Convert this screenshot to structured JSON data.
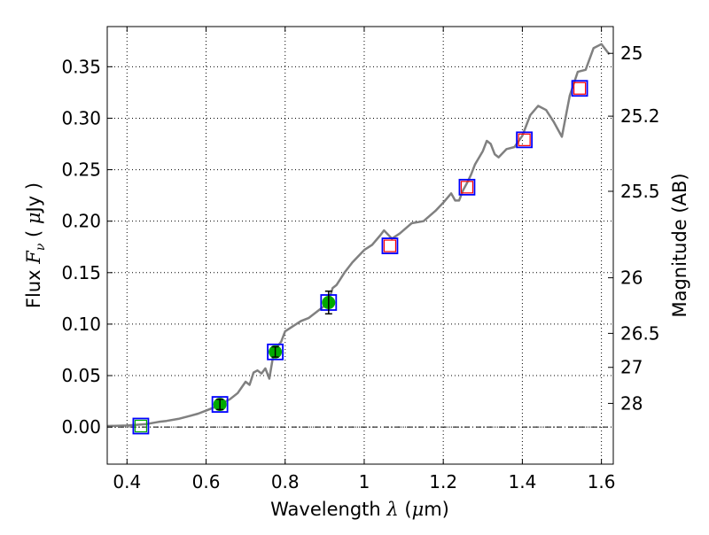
{
  "chart_data": {
    "type": "line+scatter",
    "xlabel": "Wavelength  λ (μm)",
    "ylabel": "Flux  Fν ( μJy )",
    "ylabel_right": "Magnitude (AB)",
    "xlim": [
      0.35,
      1.63
    ],
    "ylim": [
      -0.036,
      0.389
    ],
    "grid": true,
    "x_ticks": [
      0.4,
      0.6,
      0.8,
      1.0,
      1.2,
      1.4,
      1.6
    ],
    "x_tick_labels": [
      "0.4",
      "0.6",
      "0.8",
      "1",
      "1.2",
      "1.4",
      "1.6"
    ],
    "y_ticks": [
      0.0,
      0.05,
      0.1,
      0.15,
      0.2,
      0.25,
      0.3,
      0.35
    ],
    "y_tick_labels": [
      "0.00",
      "0.05",
      "0.10",
      "0.15",
      "0.20",
      "0.25",
      "0.30",
      "0.35"
    ],
    "right_ticks": [
      {
        "label": "25",
        "flux": 0.363
      },
      {
        "label": "25.2",
        "flux": 0.302
      },
      {
        "label": "25.5",
        "flux": 0.229
      },
      {
        "label": "26",
        "flux": 0.145
      },
      {
        "label": "26.5",
        "flux": 0.091
      },
      {
        "label": "27",
        "flux": 0.058
      },
      {
        "label": "28",
        "flux": 0.023
      }
    ],
    "spectrum": {
      "color": "#808080",
      "x": [
        0.35,
        0.4,
        0.42,
        0.45,
        0.48,
        0.5,
        0.53,
        0.56,
        0.58,
        0.6,
        0.62,
        0.64,
        0.66,
        0.68,
        0.7,
        0.71,
        0.72,
        0.73,
        0.74,
        0.75,
        0.76,
        0.77,
        0.78,
        0.79,
        0.8,
        0.82,
        0.84,
        0.86,
        0.88,
        0.9,
        0.91,
        0.92,
        0.93,
        0.95,
        0.97,
        1.0,
        1.02,
        1.04,
        1.05,
        1.07,
        1.09,
        1.12,
        1.15,
        1.18,
        1.2,
        1.22,
        1.23,
        1.24,
        1.25,
        1.26,
        1.27,
        1.28,
        1.3,
        1.31,
        1.32,
        1.33,
        1.34,
        1.36,
        1.38,
        1.4,
        1.42,
        1.44,
        1.46,
        1.48,
        1.5,
        1.52,
        1.54,
        1.56,
        1.58,
        1.6,
        1.62
      ],
      "y": [
        0.001,
        0.0015,
        0.002,
        0.003,
        0.005,
        0.006,
        0.008,
        0.011,
        0.013,
        0.016,
        0.019,
        0.023,
        0.027,
        0.033,
        0.044,
        0.041,
        0.053,
        0.055,
        0.052,
        0.057,
        0.047,
        0.07,
        0.078,
        0.083,
        0.093,
        0.098,
        0.103,
        0.106,
        0.112,
        0.118,
        0.122,
        0.135,
        0.138,
        0.15,
        0.16,
        0.172,
        0.177,
        0.186,
        0.191,
        0.183,
        0.188,
        0.198,
        0.2,
        0.21,
        0.218,
        0.227,
        0.22,
        0.22,
        0.23,
        0.237,
        0.245,
        0.255,
        0.268,
        0.278,
        0.275,
        0.265,
        0.262,
        0.27,
        0.272,
        0.283,
        0.303,
        0.312,
        0.308,
        0.296,
        0.282,
        0.322,
        0.345,
        0.347,
        0.368,
        0.372,
        0.362
      ]
    },
    "model_points": {
      "blue_squares": [
        {
          "x": 0.435,
          "y": 0.001
        },
        {
          "x": 0.635,
          "y": 0.022
        },
        {
          "x": 0.775,
          "y": 0.073
        },
        {
          "x": 0.91,
          "y": 0.121
        },
        {
          "x": 1.065,
          "y": 0.176
        },
        {
          "x": 1.26,
          "y": 0.233
        },
        {
          "x": 1.405,
          "y": 0.279
        },
        {
          "x": 1.545,
          "y": 0.329
        }
      ],
      "red_squares": [
        {
          "x": 1.065,
          "y": 0.176
        },
        {
          "x": 1.26,
          "y": 0.233
        },
        {
          "x": 1.405,
          "y": 0.279
        },
        {
          "x": 1.545,
          "y": 0.329
        }
      ],
      "green_squares": [
        {
          "x": 0.435,
          "y": 0.001
        }
      ]
    },
    "observed_points": [
      {
        "x": 0.635,
        "y": 0.022,
        "err": 0.005
      },
      {
        "x": 0.775,
        "y": 0.073,
        "err": 0.005
      },
      {
        "x": 0.91,
        "y": 0.121,
        "err": 0.011
      }
    ],
    "colors": {
      "spectrum": "#808080",
      "blue": "#0000ff",
      "red": "#ff0000",
      "green": "#00aa00",
      "error": "#000000",
      "grid": "#000000"
    }
  }
}
